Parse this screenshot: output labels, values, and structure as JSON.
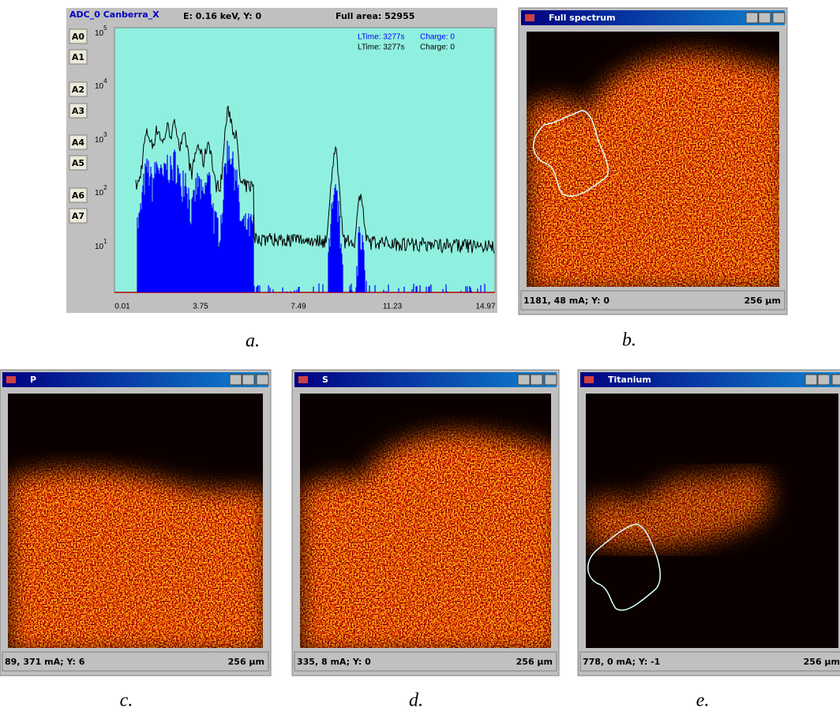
{
  "panel_a": {
    "caption": "a.",
    "header": {
      "detector": "ADC_0 Canberra_X",
      "cursor": "E: 0.16 keV, Y: 0",
      "area": "Full area: 52955"
    },
    "buttons": [
      "A0",
      "A1",
      "A2",
      "A3",
      "A4",
      "A5",
      "A6",
      "A7"
    ],
    "y_axis_labels": [
      {
        "base": "10",
        "exp": "5"
      },
      {
        "base": "10",
        "exp": "4"
      },
      {
        "base": "10",
        "exp": "3"
      },
      {
        "base": "10",
        "exp": "2"
      },
      {
        "base": "10",
        "exp": "1"
      }
    ],
    "x_axis_labels": [
      "0.01",
      "3.75",
      "7.49",
      "11.23",
      "14.97"
    ],
    "legend": [
      {
        "live_time": "LTime: 3277s",
        "charge": "Charge: 0"
      },
      {
        "live_time": "LTime: 3277s",
        "charge": "Charge: 0"
      }
    ]
  },
  "windows": [
    {
      "title": "Full spectrum",
      "status": "1181, 48 mA;  Y: 0",
      "scale": "256 µm",
      "caption": "b."
    },
    {
      "title": "P",
      "status": "89, 371 mA;  Y: 6",
      "scale": "256 µm",
      "caption": "c."
    },
    {
      "title": "S",
      "status": "335, 8 mA;  Y: 0",
      "scale": "256 µm",
      "caption": "d."
    },
    {
      "title": "Titanium",
      "status": "778, 0 mA;  Y: -1",
      "scale": "256 µm",
      "caption": "e."
    }
  ]
}
